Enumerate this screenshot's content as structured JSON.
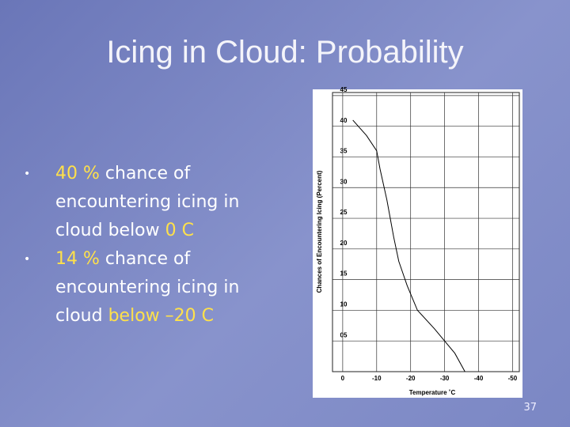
{
  "title": "Icing in Cloud: Probability",
  "bullets": [
    {
      "segments": [
        {
          "text": "40 %",
          "color": "#ffe14a"
        },
        {
          "text": "chance of encountering icing in cloud below",
          "color": "#ffffff"
        },
        {
          "text": "0 C",
          "color": "#ffe14a"
        }
      ]
    },
    {
      "segments": [
        {
          "text": "14 %",
          "color": "#ffe14a"
        },
        {
          "text": "chance of encountering icing in cloud",
          "color": "#ffffff"
        },
        {
          "text": "below –20 C",
          "color": "#ffe14a"
        }
      ]
    }
  ],
  "page_number": "37",
  "chart_data": {
    "type": "line",
    "x_label": "Temperature ˚C",
    "y_label": "Chances of Encountering Icing (Percent)",
    "x": [
      -3,
      -7,
      -10,
      -11,
      -13,
      -15,
      -16.5,
      -19,
      -22,
      -27,
      -30,
      -33,
      -36
    ],
    "series": [
      {
        "color": "#000000",
        "values": [
          41,
          38.5,
          36,
          33,
          28,
          22,
          18,
          14,
          10,
          7,
          5,
          3,
          0
        ]
      }
    ],
    "xlim": [
      3,
      -52
    ],
    "xticks": [
      0,
      -10,
      -20,
      -30,
      -40,
      -50
    ],
    "ylim": [
      0,
      45.5
    ],
    "yticks": [
      {
        "value": 5,
        "label": "05"
      },
      10,
      15,
      20,
      25,
      30,
      35,
      40,
      45
    ],
    "grid": true
  }
}
